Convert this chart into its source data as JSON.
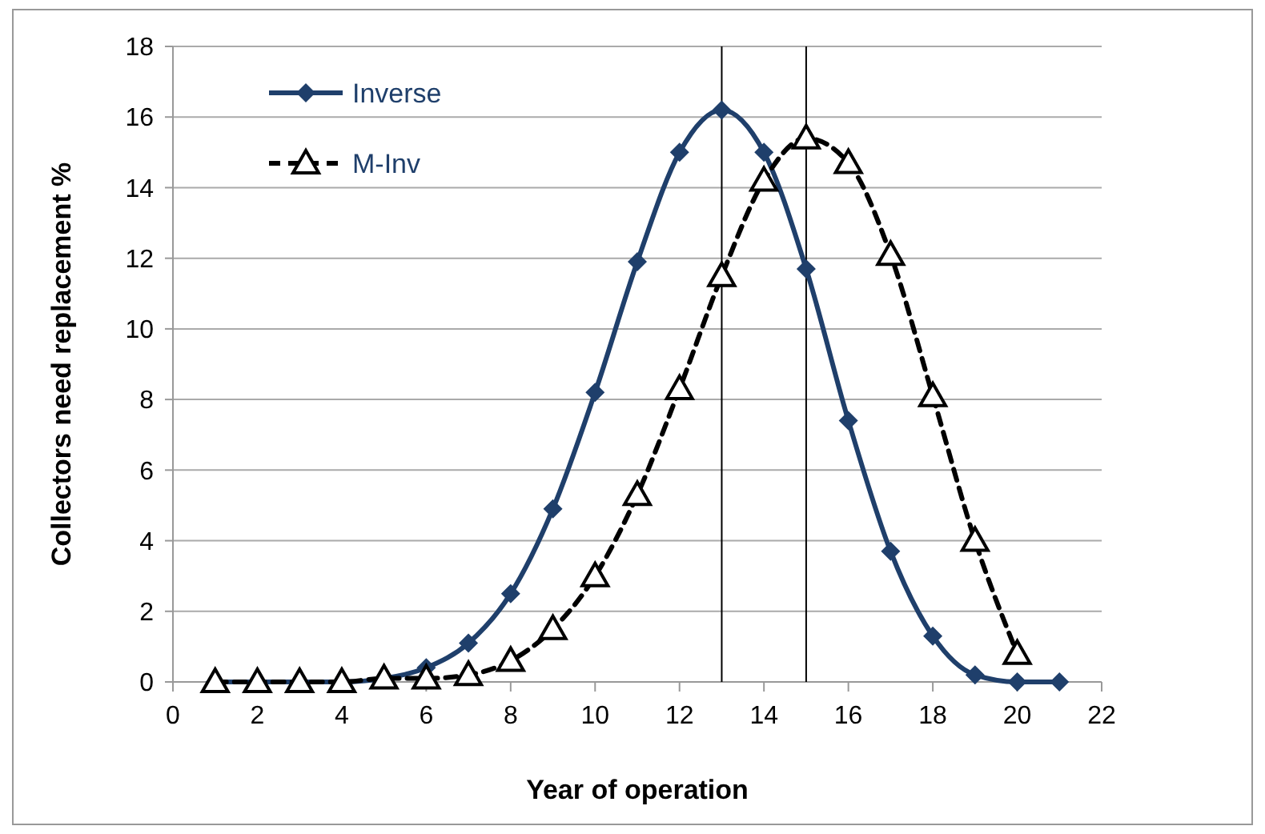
{
  "chart_data": {
    "type": "line",
    "xlabel": "Year of operation",
    "ylabel": "Collectors need replacement  %",
    "xlim": [
      0,
      22
    ],
    "xticks": [
      0,
      2,
      4,
      6,
      8,
      10,
      12,
      14,
      16,
      18,
      20,
      22
    ],
    "ylim": [
      0,
      18
    ],
    "yticks": [
      0,
      2,
      4,
      6,
      8,
      10,
      12,
      14,
      16,
      18
    ],
    "grid": "y",
    "legend": "top left",
    "series": [
      {
        "name": "Inverse",
        "color": "#1f3f6b",
        "marker": "diamond",
        "line_style": "solid",
        "x": [
          1,
          2,
          3,
          4,
          5,
          6,
          7,
          8,
          9,
          10,
          11,
          12,
          13,
          14,
          15,
          16,
          17,
          18,
          19,
          20,
          21
        ],
        "values": [
          0,
          0,
          0,
          0,
          0.1,
          0.4,
          1.1,
          2.5,
          4.9,
          8.2,
          11.9,
          15.0,
          16.2,
          15.0,
          11.7,
          7.4,
          3.7,
          1.3,
          0.2,
          0,
          0
        ]
      },
      {
        "name": "M-Inv",
        "color": "#000000",
        "marker": "triangle",
        "line_style": "dashed",
        "x": [
          1,
          2,
          3,
          4,
          5,
          6,
          7,
          8,
          9,
          10,
          11,
          12,
          13,
          14,
          15,
          16,
          17,
          18,
          19,
          20
        ],
        "values": [
          0,
          0,
          0,
          0,
          0.1,
          0.1,
          0.2,
          0.6,
          1.5,
          3.0,
          5.3,
          8.3,
          11.5,
          14.2,
          15.4,
          14.7,
          12.1,
          8.1,
          4.0,
          0.8
        ]
      }
    ],
    "ref_lines": [
      {
        "axis": "x",
        "value": 13,
        "color": "#000000"
      },
      {
        "axis": "x",
        "value": 15,
        "color": "#000000"
      }
    ]
  }
}
